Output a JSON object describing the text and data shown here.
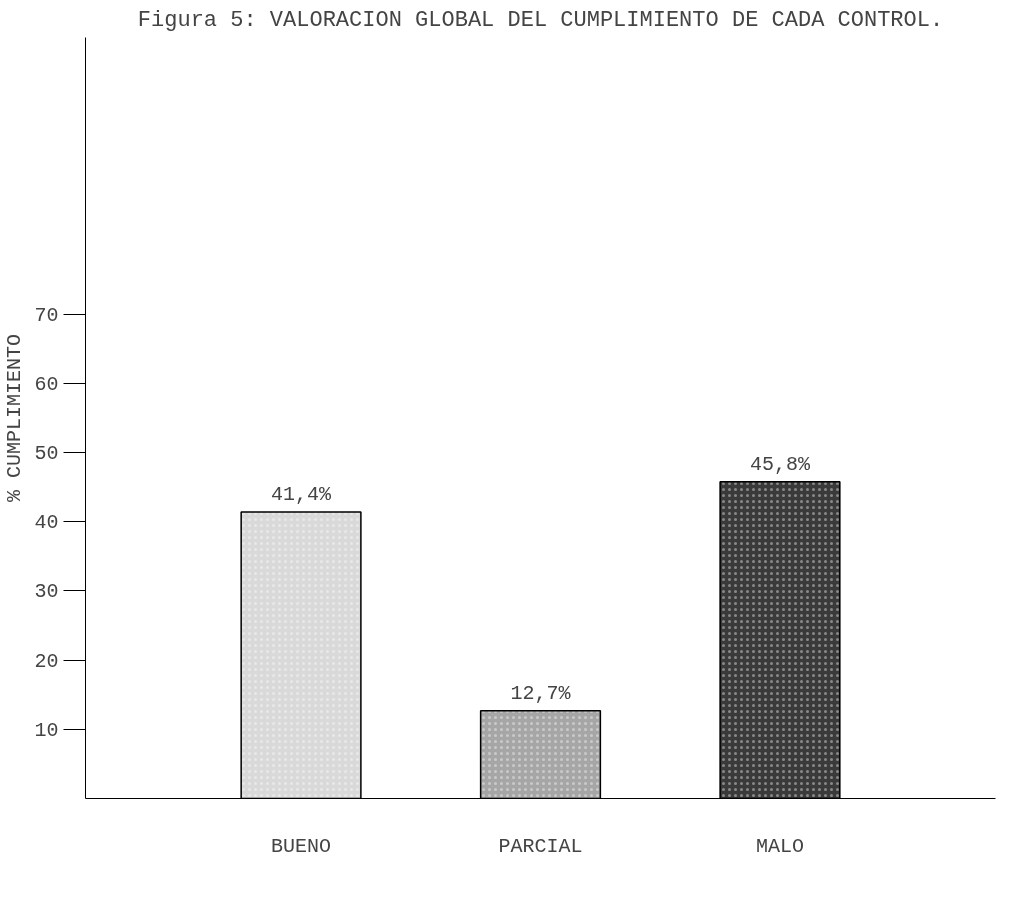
{
  "chart_data": {
    "type": "bar",
    "title": "Figura 5: VALORACION GLOBAL DEL CUMPLIMIENTO DE CADA CONTROL.",
    "ylabel": "% CUMPLIMIENTO",
    "categories": [
      "BUENO",
      "PARCIAL",
      "MALO"
    ],
    "values": [
      41.4,
      12.7,
      45.8
    ],
    "colors": [
      "#d9d9d9",
      "#a6a6a6",
      "#3a3a3a"
    ],
    "value_labels": [
      "41,4%",
      "12,7%",
      "45,8%"
    ],
    "ylim": [
      0,
      110
    ],
    "yticks": [
      10,
      20,
      30,
      40,
      50,
      60,
      70
    ],
    "grid": false
  }
}
